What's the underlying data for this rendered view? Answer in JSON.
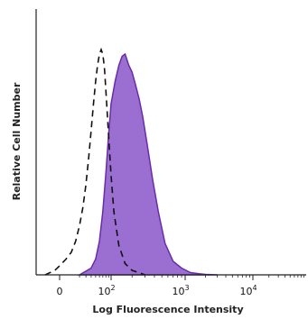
{
  "chart_data": {
    "type": "area",
    "title": "",
    "xlabel": "Log Fluorescence Intensity",
    "ylabel": "Relative Cell Number",
    "x_scale": "log",
    "x_ticks": [
      {
        "base": "0",
        "exp": "",
        "value": 0
      },
      {
        "base": "10",
        "exp": "2",
        "value": 100
      },
      {
        "base": "10",
        "exp": "3",
        "value": 1000
      },
      {
        "base": "10",
        "exp": "4",
        "value": 10000
      }
    ],
    "xlim": [
      -20,
      100000
    ],
    "ylim": [
      0,
      1
    ],
    "grid": false,
    "series": [
      {
        "style": "dashed-outline",
        "color": "#111111",
        "x": [
          -20,
          -5,
          0,
          5,
          10,
          15,
          20,
          25,
          30,
          35,
          40,
          45,
          50,
          55,
          60,
          65,
          70,
          75,
          80,
          90,
          100,
          110,
          130,
          160,
          200,
          300
        ],
        "y": [
          0.0,
          0.02,
          0.04,
          0.07,
          0.1,
          0.15,
          0.22,
          0.3,
          0.4,
          0.52,
          0.64,
          0.76,
          0.86,
          0.93,
          0.98,
          1.0,
          0.98,
          0.92,
          0.82,
          0.62,
          0.44,
          0.28,
          0.13,
          0.05,
          0.02,
          0.0
        ]
      },
      {
        "style": "filled",
        "color": "#9b6fd1",
        "stroke": "#6a2ba8",
        "x": [
          20,
          40,
          50,
          60,
          70,
          80,
          90,
          100,
          115,
          130,
          145,
          160,
          180,
          200,
          220,
          250,
          280,
          320,
          380,
          450,
          550,
          700,
          900,
          1200,
          1600,
          2000,
          3000
        ],
        "y": [
          0.0,
          0.03,
          0.07,
          0.15,
          0.28,
          0.45,
          0.62,
          0.76,
          0.86,
          0.93,
          0.97,
          0.98,
          0.93,
          0.9,
          0.85,
          0.78,
          0.7,
          0.58,
          0.42,
          0.28,
          0.14,
          0.06,
          0.03,
          0.01,
          0.005,
          0.002,
          0.0
        ]
      }
    ]
  }
}
